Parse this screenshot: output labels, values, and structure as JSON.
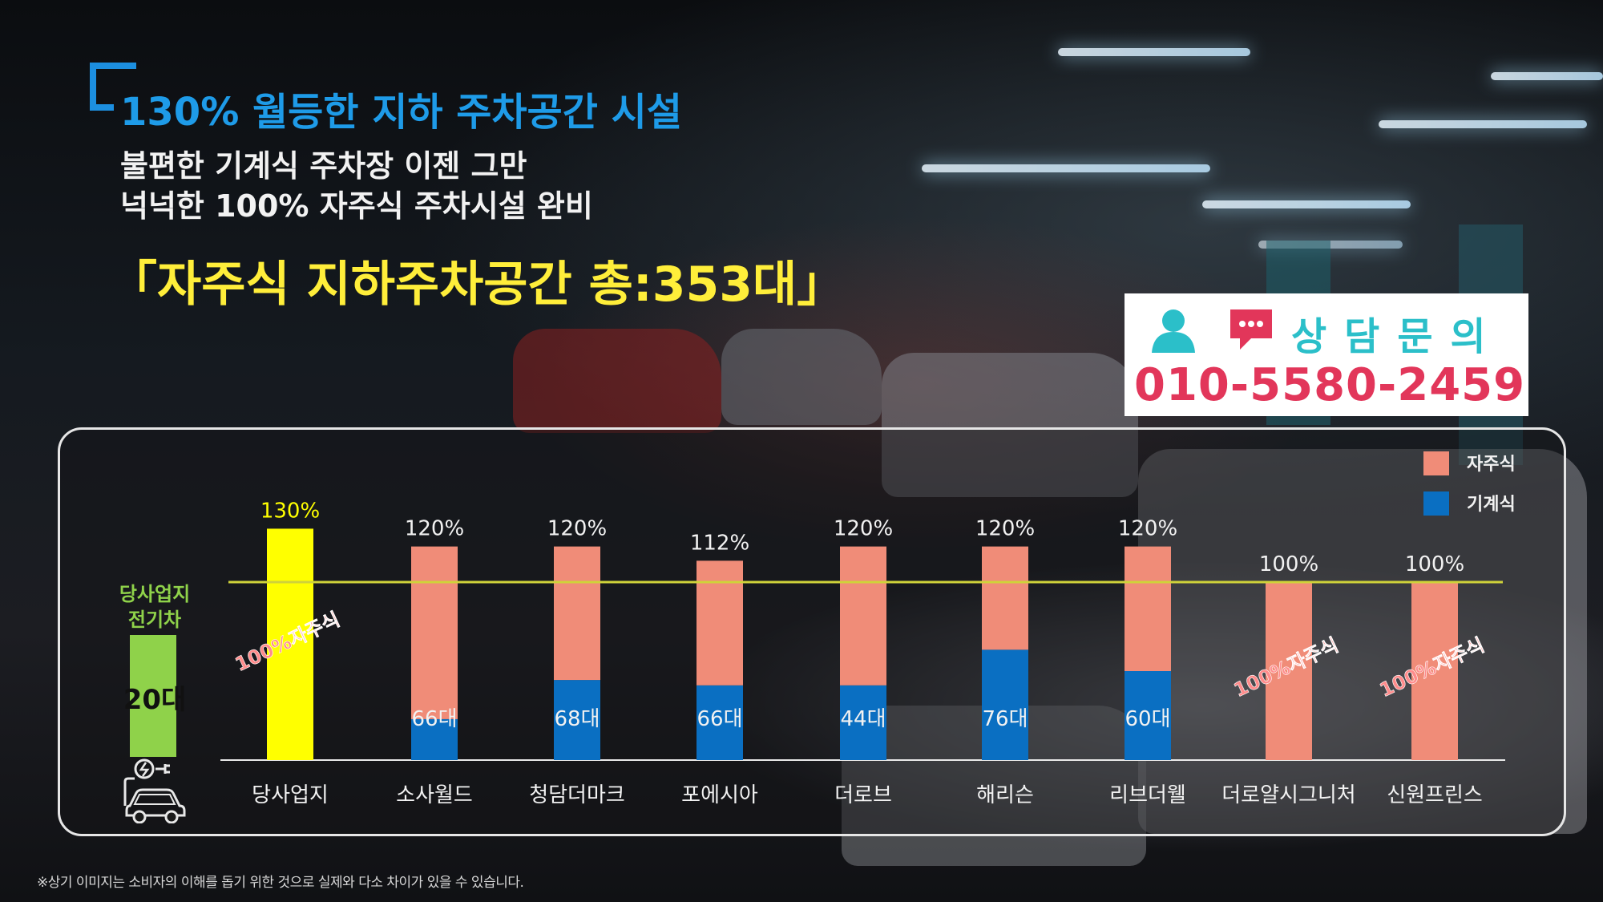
{
  "header": {
    "headline": "130% 월등한 지하 주차공간 시설",
    "sub_line1": "불편한 기계식 주차장 이젠 그만",
    "sub_line2": "넉넉한 100% 자주식 주차시설 완비",
    "highlight": "「자주식 지하주차공간 총:353대」"
  },
  "contact": {
    "label": "상담문의",
    "phone": "010-5580-2459",
    "icons": [
      "person-icon",
      "chat-bubble-icon"
    ],
    "label_color": "#2bbfc9",
    "phone_color": "#e2365a"
  },
  "ev": {
    "label_line1": "당사업지",
    "label_line2": "전기차",
    "count": "20대",
    "icon": "ev-car-charging-icon"
  },
  "chart_data": {
    "type": "bar",
    "stacked": true,
    "categories": [
      "당사업지",
      "소사월드",
      "청담더마크",
      "포에시아",
      "더로브",
      "해리슨",
      "리브더웰",
      "더로얄시그니처",
      "신원프린스"
    ],
    "totals": [
      130,
      120,
      120,
      112,
      120,
      120,
      120,
      100,
      100
    ],
    "total_labels": [
      "130%",
      "120%",
      "120%",
      "112%",
      "120%",
      "120%",
      "120%",
      "100%",
      "100%"
    ],
    "series": [
      {
        "name": "자주식",
        "color": "#f08c78",
        "values": [
          130,
          97,
          75,
          70,
          78,
          58,
          70,
          100,
          100
        ]
      },
      {
        "name": "기계식",
        "color": "#0a6fc2",
        "values": [
          0,
          23,
          45,
          42,
          42,
          62,
          50,
          0,
          0
        ]
      }
    ],
    "mechanical_labels": [
      "",
      "66대",
      "68대",
      "66대",
      "44대",
      "76대",
      "60대",
      "",
      ""
    ],
    "diagonal_labels": [
      "100%자주식",
      "",
      "",
      "",
      "",
      "",
      "",
      "100%자주식",
      "100%자주식"
    ],
    "highlight_color": "#ffff00",
    "reference_line": 100,
    "ylim": [
      0,
      140
    ],
    "legend_position": "top-right"
  },
  "footnote": "※상기 이미지는 소비자의 이해를 돕기 위한 것으로 실제와 다소 차이가 있을 수 있습니다."
}
